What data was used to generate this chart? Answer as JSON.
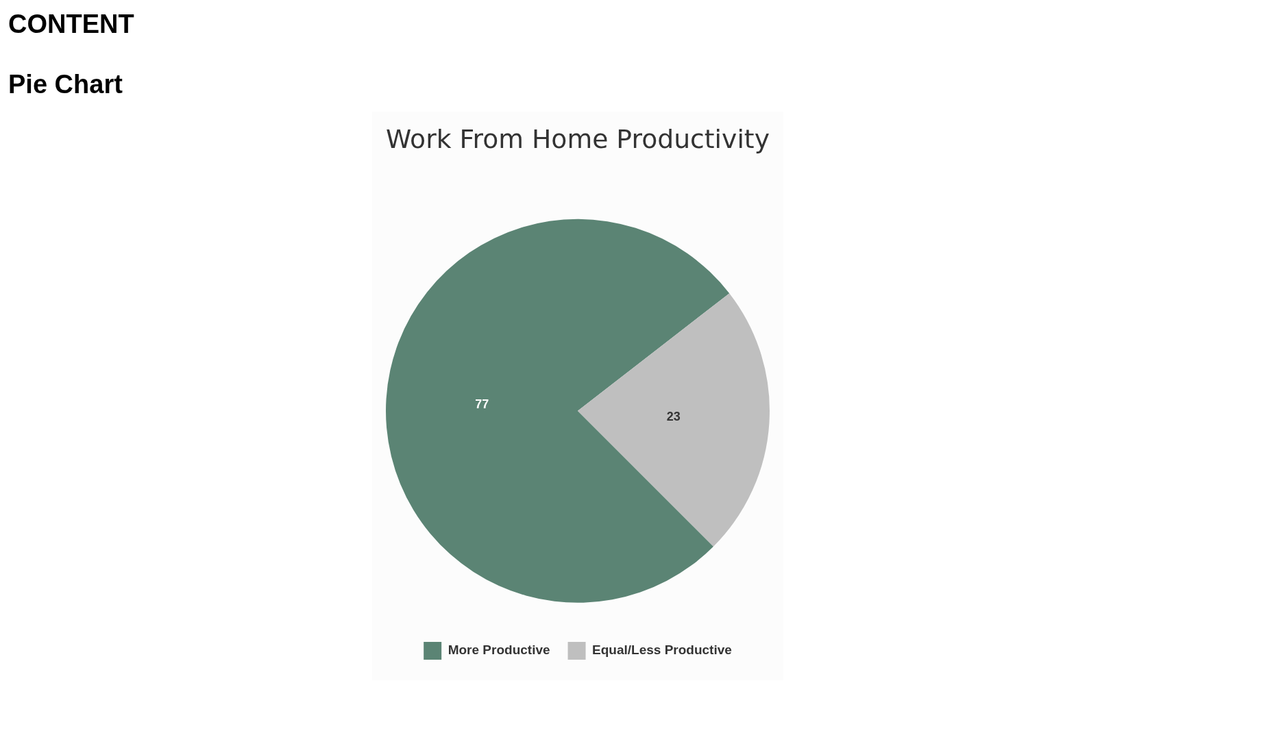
{
  "chart_data": {
    "type": "pie",
    "title": "Work From Home Productivity",
    "annotations": [
      "CONTENT",
      "Pie Chart"
    ],
    "categories": [
      "More Productive",
      "Equal/Less Productive"
    ],
    "values": [
      77,
      23
    ],
    "colors": [
      "#5b8474",
      "#bfbfbf"
    ],
    "data_labels": true,
    "legend": "bottom"
  }
}
